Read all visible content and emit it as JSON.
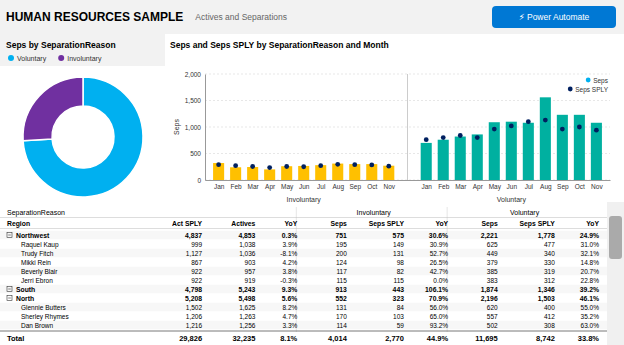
{
  "page": {
    "title": "HUMAN RESOURCES SAMPLE",
    "subtitle": "Actives and Separations",
    "button": "⚡ Power Automate"
  },
  "chart_data": [
    {
      "type": "pie",
      "title": "Seps by SeparationReason",
      "categories": [
        "Voluntary",
        "Involuntary"
      ],
      "values": [
        0.74,
        0.26
      ],
      "colors": [
        "#00b0f0",
        "#7030a0"
      ],
      "legend": "upper left"
    },
    {
      "type": "bar",
      "title": "Seps and Seps SPLY by SeparationReason and Month",
      "categories": [
        "Jan",
        "Feb",
        "Mar",
        "Apr",
        "May",
        "Jun",
        "Jul",
        "Aug",
        "Sep",
        "Oct",
        "Nov",
        "Jan",
        "Feb",
        "Mar",
        "Apr",
        "May",
        "Jun",
        "Jul",
        "Aug",
        "Sep",
        "Oct",
        "Nov"
      ],
      "x_groups": [
        "Involuntary",
        "Voluntary"
      ],
      "y_label": "Seps",
      "series": [
        {
          "name": "Seps",
          "type": "bar",
          "color": "#00b0f0",
          "colors": [
            "#ffc000",
            "#ffc000",
            "#ffc000",
            "#ffc000",
            "#ffc000",
            "#ffc000",
            "#ffc000",
            "#ffc000",
            "#ffc000",
            "#ffc000",
            "#ffc000",
            "#00b0a0",
            "#00b0a0",
            "#00b0a0",
            "#00b0a0",
            "#00b0a0",
            "#00b0a0",
            "#00b0a0",
            "#00b0a0",
            "#00b0a0",
            "#00b0a0",
            "#00b0a0"
          ],
          "values": [
            320,
            240,
            245,
            200,
            260,
            265,
            280,
            310,
            300,
            300,
            270,
            700,
            760,
            820,
            860,
            1090,
            1100,
            1080,
            1560,
            1230,
            1230,
            1080
          ]
        },
        {
          "name": "Seps SPLY",
          "type": "scatter",
          "color": "#002060",
          "values": [
            290,
            270,
            255,
            235,
            255,
            250,
            270,
            295,
            290,
            285,
            260,
            760,
            800,
            840,
            800,
            960,
            1020,
            1100,
            1130,
            960,
            1000,
            940
          ]
        }
      ],
      "ylim": [
        0,
        2000
      ],
      "yticks": [
        0,
        500,
        {
          "value": 1000,
          "label": "1,000"
        },
        {
          "value": 1500,
          "label": "1,500"
        },
        {
          "value": 2000,
          "label": "2,000"
        }
      ],
      "grid": true,
      "legend": "upper right"
    },
    {
      "type": "table",
      "row_header_title": "SeparationReason",
      "columns": [
        "Region",
        "Act SPLY",
        "Actives",
        "YoY"
      ],
      "column_groups": [
        {
          "name": "Involuntary",
          "columns": [
            "Seps",
            "Seps SPLY",
            "YoY"
          ]
        },
        {
          "name": "Voluntary",
          "columns": [
            "Seps",
            "Seps SPLY",
            "YoY"
          ]
        }
      ],
      "rows": [
        {
          "label": "Northwest",
          "values": [
            "4,837",
            "4,853",
            "0.3%",
            "751",
            "575",
            "30.6%",
            "2,221",
            "1,778",
            "24.9%"
          ],
          "children": [
            {
              "label": "Raquel Kaup",
              "values": [
                "999",
                "1,038",
                "3.9%",
                "195",
                "149",
                "30.9%",
                "625",
                "477",
                "31.0%"
              ]
            },
            {
              "label": "Trudy Fitch",
              "values": [
                "1,127",
                "1,036",
                "-8.1%",
                "200",
                "131",
                "52.7%",
                "449",
                "340",
                "32.1%"
              ]
            },
            {
              "label": "Mikki Rein",
              "values": [
                "867",
                "903",
                "4.2%",
                "124",
                "98",
                "26.5%",
                "379",
                "330",
                "14.8%"
              ]
            },
            {
              "label": "Beverly Blair",
              "values": [
                "922",
                "957",
                "3.8%",
                "117",
                "82",
                "42.7%",
                "385",
                "319",
                "20.7%"
              ]
            },
            {
              "label": "Jerri Ebron",
              "values": [
                "922",
                "919",
                "-0.3%",
                "115",
                "115",
                "0.0%",
                "383",
                "312",
                "22.8%"
              ]
            }
          ]
        },
        {
          "label": "South",
          "values": [
            "4,798",
            "5,243",
            "9.3%",
            "913",
            "443",
            "106.1%",
            "1,874",
            "1,346",
            "39.2%"
          ]
        },
        {
          "label": "North",
          "values": [
            "5,208",
            "5,498",
            "5.6%",
            "552",
            "323",
            "70.9%",
            "2,196",
            "1,503",
            "46.1%"
          ],
          "children": [
            {
              "label": "Glennie Butters",
              "values": [
                "1,502",
                "1,625",
                "8.2%",
                "131",
                "84",
                "56.0%",
                "620",
                "400",
                "55.0%"
              ]
            },
            {
              "label": "Sherley Rhymes",
              "values": [
                "1,206",
                "1,263",
                "4.7%",
                "170",
                "103",
                "65.0%",
                "557",
                "412",
                "35.2%"
              ]
            },
            {
              "label": "Dan Brown",
              "values": [
                "1,216",
                "1,256",
                "3.3%",
                "114",
                "59",
                "93.2%",
                "502",
                "308",
                "63.0%"
              ]
            }
          ]
        }
      ],
      "total": {
        "label": "Total",
        "values": [
          "29,826",
          "32,235",
          "8.1%",
          "4,014",
          "2,770",
          "44.9%",
          "11,695",
          "8,742",
          "33.8%"
        ]
      }
    }
  ]
}
